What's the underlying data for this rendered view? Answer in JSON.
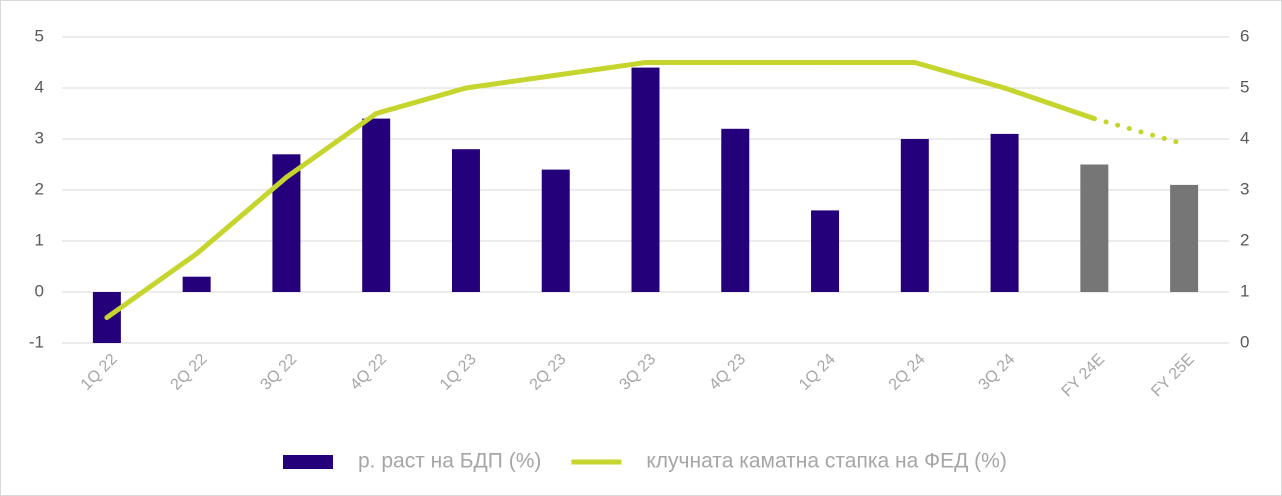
{
  "chart_data": {
    "type": "bar_line",
    "categories": [
      "1Q 22",
      "2Q 22",
      "3Q 22",
      "4Q 22",
      "1Q 23",
      "2Q 23",
      "3Q 23",
      "4Q 23",
      "1Q 24",
      "2Q 24",
      "3Q 24",
      "FY 24E",
      "FY 25E"
    ],
    "series": [
      {
        "name": "р. раст на БДП (%)",
        "type": "bar",
        "color": "#24007a",
        "colors": [
          "#24007a",
          "#24007a",
          "#24007a",
          "#24007a",
          "#24007a",
          "#24007a",
          "#24007a",
          "#24007a",
          "#24007a",
          "#24007a",
          "#24007a",
          "#767676",
          "#767676"
        ],
        "values": [
          -1,
          0.3,
          2.7,
          3.4,
          2.8,
          2.4,
          4.4,
          3.2,
          1.6,
          3.0,
          3.1,
          2.5,
          2.1
        ]
      },
      {
        "name": "клучната каматна стапка на ФЕД (%)",
        "type": "line",
        "axis": "y2",
        "color": "#c5d52d",
        "styles": [
          "solid",
          "solid",
          "solid",
          "solid",
          "solid",
          "solid",
          "solid",
          "solid",
          "solid",
          "solid",
          "solid",
          "solid",
          "dotted"
        ],
        "values": [
          0.5,
          1.75,
          3.25,
          4.5,
          5.0,
          5.25,
          5.5,
          5.5,
          5.5,
          5.5,
          5.0,
          4.4,
          3.9
        ]
      }
    ],
    "ylim": [
      -1,
      5
    ],
    "yticks": [
      -1,
      0,
      1,
      2,
      3,
      4,
      5
    ],
    "y2lim": [
      0,
      6
    ],
    "y2ticks": [
      0,
      1,
      2,
      3,
      4,
      5,
      6
    ],
    "grid": true,
    "legend": "bottom"
  }
}
